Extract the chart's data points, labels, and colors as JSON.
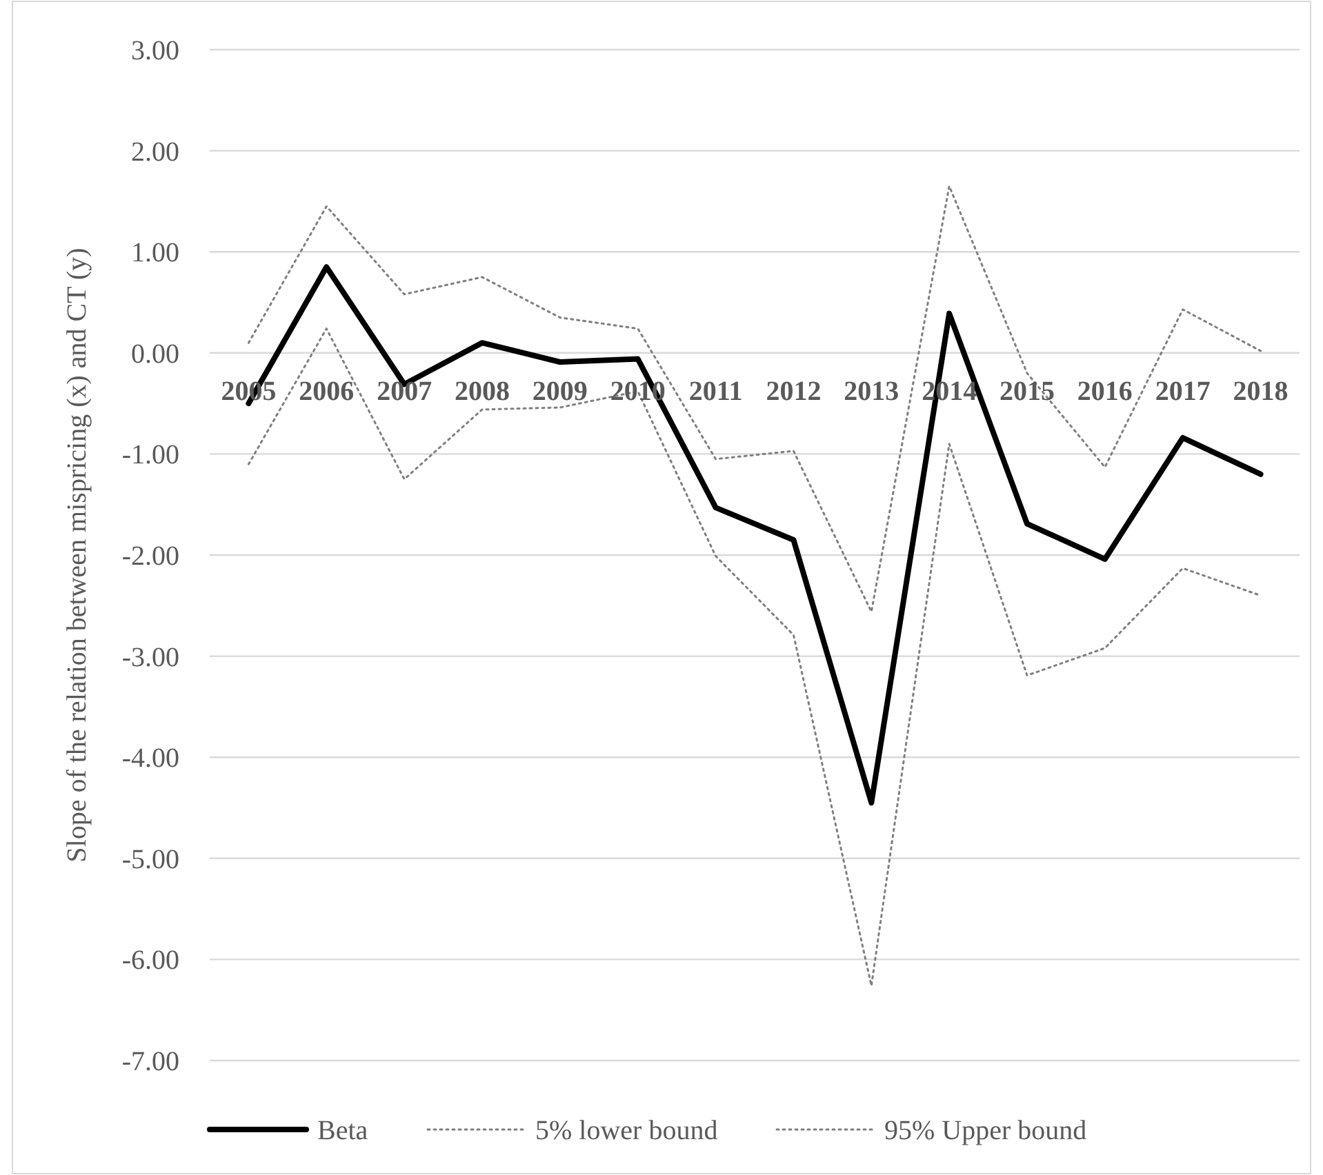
{
  "chart_data": {
    "type": "line",
    "ylabel": "Slope of the relation between mispricing (x) and CT (y)",
    "categories": [
      "2005",
      "2006",
      "2007",
      "2008",
      "2009",
      "2010",
      "2011",
      "2012",
      "2013",
      "2014",
      "2015",
      "2016",
      "2017",
      "2018"
    ],
    "series": [
      {
        "name": "Beta",
        "color": "#000000",
        "line_style": "solid",
        "values": [
          -0.5,
          0.85,
          -0.31,
          0.1,
          -0.09,
          -0.06,
          -1.53,
          -1.85,
          -4.45,
          0.39,
          -1.69,
          -2.04,
          -0.84,
          -1.2
        ]
      },
      {
        "name": "5% lower bound",
        "color": "#7f7f7f",
        "line_style": "dotted",
        "values": [
          -1.1,
          0.24,
          -1.25,
          -0.56,
          -0.54,
          -0.38,
          -2.01,
          -2.79,
          -6.26,
          -0.9,
          -3.19,
          -2.92,
          -2.13,
          -2.4
        ]
      },
      {
        "name": "95% Upper bound",
        "color": "#7f7f7f",
        "line_style": "dotted",
        "values": [
          0.1,
          1.45,
          0.58,
          0.75,
          0.35,
          0.24,
          -1.05,
          -0.97,
          -2.56,
          1.65,
          -0.2,
          -1.13,
          0.43,
          0.02
        ]
      }
    ],
    "ylim": [
      -7,
      3
    ],
    "yticks": [
      {
        "value": 3,
        "label": "3.00"
      },
      {
        "value": 2,
        "label": "2.00"
      },
      {
        "value": 1,
        "label": "1.00"
      },
      {
        "value": 0,
        "label": "0.00"
      },
      {
        "value": -1,
        "label": "-1.00"
      },
      {
        "value": -2,
        "label": "-2.00"
      },
      {
        "value": -3,
        "label": "-3.00"
      },
      {
        "value": -4,
        "label": "-4.00"
      },
      {
        "value": -5,
        "label": "-5.00"
      },
      {
        "value": -6,
        "label": "-6.00"
      },
      {
        "value": -7,
        "label": "-7.00"
      }
    ],
    "grid": "y",
    "legend": "bottom",
    "marker": "none"
  }
}
